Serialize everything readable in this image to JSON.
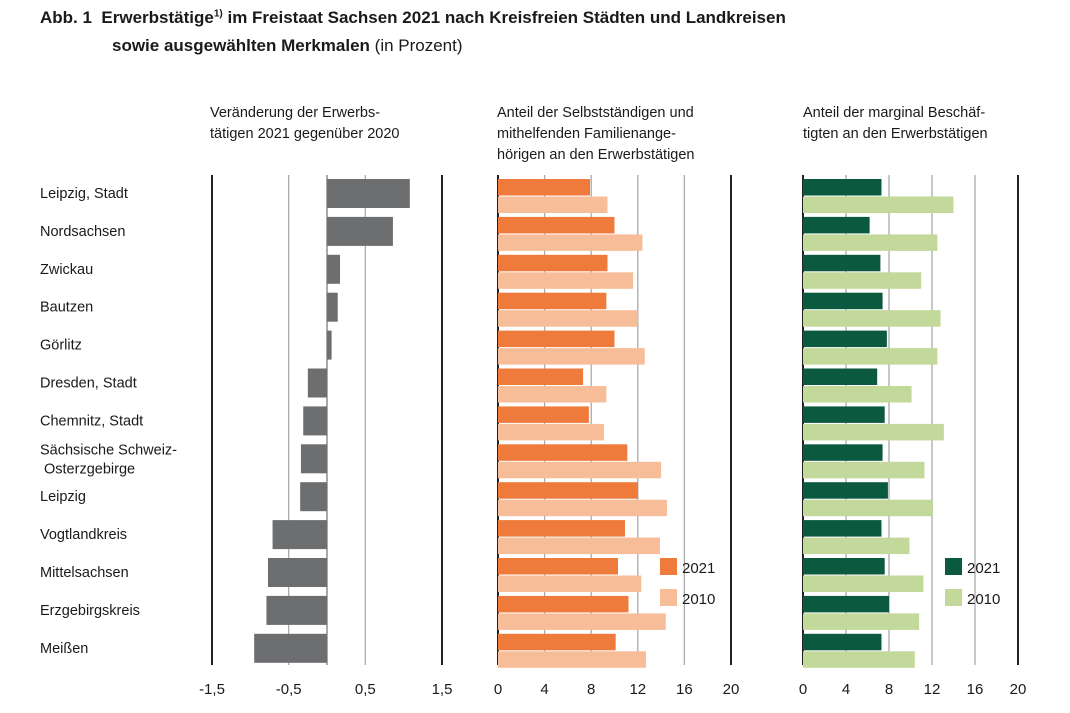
{
  "title": {
    "prefix": "Abb. 1",
    "main": "Erwerbstätige",
    "footnote": "1)",
    "rest": "im Freistaat Sachsen 2021 nach Kreisfreien Städten und Landkreisen",
    "line2_bold": "sowie ausgewählten Merkmalen",
    "line2_normal": "(in Prozent)"
  },
  "chart_data": [
    {
      "type": "bar",
      "orientation": "horizontal",
      "title": "Veränderung der Erwerbs-\ntätigen 2021 gegenüber 2020",
      "categories": [
        "Leipzig, Stadt",
        "Nordsachsen",
        "Zwickau",
        "Bautzen",
        "Görlitz",
        "Dresden, Stadt",
        "Chemnitz, Stadt",
        "Sächsische Schweiz-\nOsterzgebirge",
        "Leipzig",
        "Vogtlandkreis",
        "Mittelsachsen",
        "Erzgebirgskreis",
        "Meißen"
      ],
      "series": [
        {
          "values": [
            1.08,
            0.86,
            0.17,
            0.14,
            0.06,
            -0.25,
            -0.31,
            -0.34,
            -0.35,
            -0.71,
            -0.77,
            -0.79,
            -0.95
          ],
          "color": "#6d6e70"
        }
      ],
      "xlim": [
        -1.5,
        1.5
      ],
      "xticks": [
        "-1,5",
        "-0,5",
        "0,5",
        "1,5"
      ],
      "xtick_values": [
        -1.5,
        -0.5,
        0.5,
        1.5
      ],
      "grid": true
    },
    {
      "type": "bar",
      "orientation": "horizontal",
      "title": "Anteil der Selbstständigen und\nmithelfenden Familienange-\nhörigen an den Erwerbstätigen",
      "series": [
        {
          "name": "2021",
          "color": "#ee7a3b",
          "values": [
            7.9,
            10.0,
            9.4,
            9.3,
            10.0,
            7.3,
            7.8,
            11.1,
            12.0,
            10.9,
            10.3,
            11.2,
            10.1
          ]
        },
        {
          "name": "2010",
          "color": "#f7bd98",
          "values": [
            9.4,
            12.4,
            11.6,
            12.0,
            12.6,
            9.3,
            9.1,
            14.0,
            14.5,
            13.9,
            12.3,
            14.4,
            12.7
          ]
        }
      ],
      "xlim": [
        0,
        20
      ],
      "xticks": [
        "0",
        "4",
        "8",
        "12",
        "16",
        "20"
      ],
      "xtick_values": [
        0,
        4,
        8,
        12,
        16,
        20
      ],
      "legend": "bottom-right",
      "grid": true
    },
    {
      "type": "bar",
      "orientation": "horizontal",
      "title": "Anteil der marginal Beschäf-\ntigten an den Erwerbstätigen",
      "series": [
        {
          "name": "2021",
          "color": "#0b5a40",
          "values": [
            7.3,
            6.2,
            7.2,
            7.4,
            7.8,
            6.9,
            7.6,
            7.4,
            7.9,
            7.3,
            7.6,
            8.0,
            7.3
          ]
        },
        {
          "name": "2010",
          "color": "#c3d89b",
          "values": [
            14.0,
            12.5,
            11.0,
            12.8,
            12.5,
            10.1,
            13.1,
            11.3,
            12.1,
            9.9,
            11.2,
            10.8,
            10.4
          ]
        }
      ],
      "xlim": [
        0,
        20
      ],
      "xticks": [
        "0",
        "4",
        "8",
        "12",
        "16",
        "20"
      ],
      "xtick_values": [
        0,
        4,
        8,
        12,
        16,
        20
      ],
      "legend": "bottom-right",
      "grid": true
    }
  ]
}
